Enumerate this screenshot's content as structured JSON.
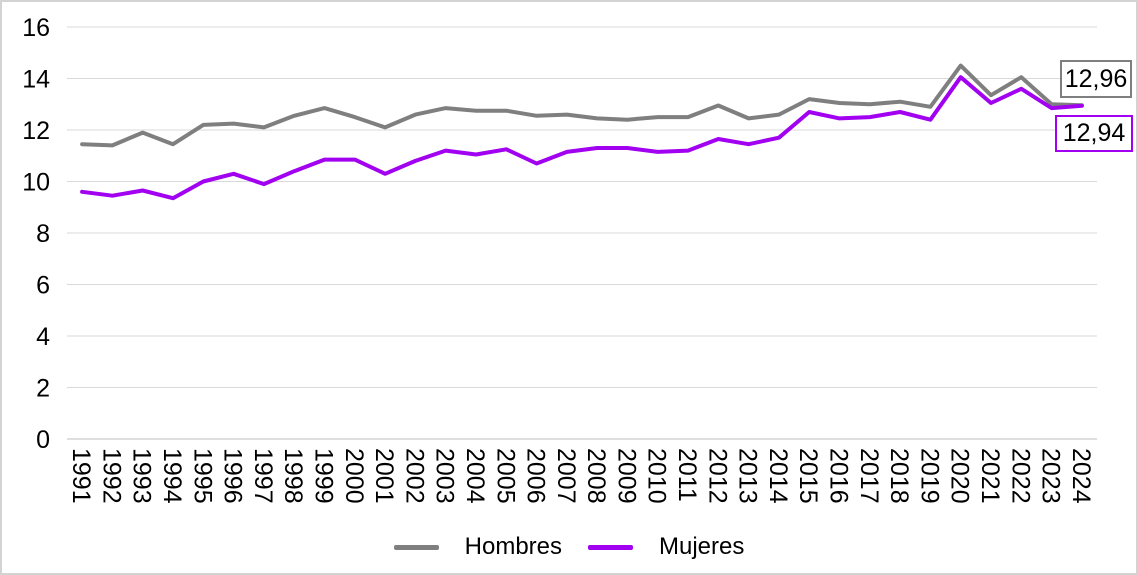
{
  "chart_data": {
    "type": "line",
    "title": "",
    "xlabel": "",
    "ylabel": "",
    "categories": [
      "1991",
      "1992",
      "1993",
      "1994",
      "1995",
      "1996",
      "1997",
      "1998",
      "1999",
      "2000",
      "2001",
      "2002",
      "2003",
      "2004",
      "2005",
      "2006",
      "2007",
      "2008",
      "2009",
      "2010",
      "2011",
      "2012",
      "2013",
      "2014",
      "2015",
      "2016",
      "2017",
      "2018",
      "2019",
      "2020",
      "2021",
      "2022",
      "2023",
      "2024"
    ],
    "series": [
      {
        "name": "Hombres",
        "color": "#7f7f7f",
        "values": [
          11.45,
          11.4,
          11.9,
          11.45,
          12.2,
          12.25,
          12.1,
          12.55,
          12.85,
          12.5,
          12.1,
          12.6,
          12.85,
          12.75,
          12.75,
          12.55,
          12.6,
          12.45,
          12.4,
          12.5,
          12.5,
          12.95,
          12.45,
          12.6,
          13.2,
          13.05,
          13.0,
          13.1,
          12.9,
          14.5,
          13.35,
          14.05,
          13.0,
          12.96
        ]
      },
      {
        "name": "Mujeres",
        "color": "#a100f1",
        "values": [
          9.6,
          9.45,
          9.65,
          9.35,
          10.0,
          10.3,
          9.9,
          10.4,
          10.85,
          10.85,
          10.3,
          10.8,
          11.2,
          11.05,
          11.25,
          10.7,
          11.15,
          11.3,
          11.3,
          11.15,
          11.2,
          11.65,
          11.45,
          11.7,
          12.7,
          12.45,
          12.5,
          12.7,
          12.4,
          14.05,
          13.05,
          13.6,
          12.85,
          12.94
        ]
      }
    ],
    "ylim": [
      0,
      16
    ],
    "yticks": [
      0,
      2,
      4,
      6,
      8,
      10,
      12,
      14,
      16
    ],
    "grid": true,
    "gridline_color": "#d9d9d9",
    "axis_line_color": "#bfbfbf",
    "legend_position": "bottom",
    "end_value_labels": [
      {
        "series": "Hombres",
        "text": "12,96",
        "border_color": "#7f7f7f"
      },
      {
        "series": "Mujeres",
        "text": "12,94",
        "border_color": "#a100f1"
      }
    ]
  }
}
